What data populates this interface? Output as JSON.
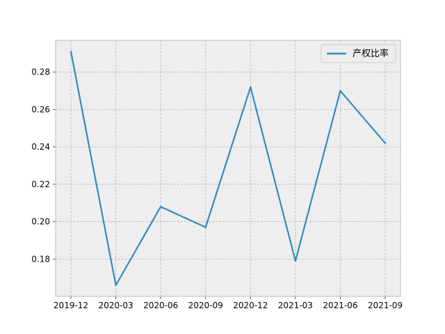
{
  "chart_data": {
    "type": "line",
    "title": "",
    "xlabel": "",
    "ylabel": "",
    "categories": [
      "2019-12",
      "2020-03",
      "2020-06",
      "2020-09",
      "2020-12",
      "2021-03",
      "2021-06",
      "2021-09"
    ],
    "series": [
      {
        "name": "产权比率",
        "color": "#348abd",
        "values": [
          0.291,
          0.166,
          0.208,
          0.197,
          0.272,
          0.179,
          0.27,
          0.242
        ]
      }
    ],
    "ylim": [
      0.16,
      0.297
    ],
    "yticks": [
      "0.18",
      "0.20",
      "0.22",
      "0.24",
      "0.26",
      "0.28"
    ],
    "grid": true,
    "legend_position": "top-right",
    "background_color": "#eeeeee",
    "grid_color": "#b2b2b2"
  }
}
